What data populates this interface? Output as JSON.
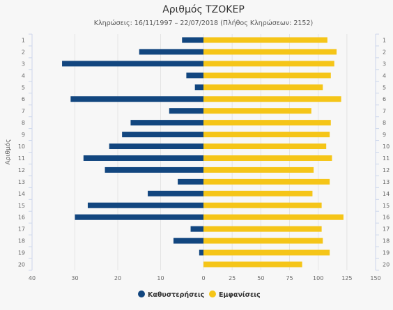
{
  "chart_data": {
    "type": "bar",
    "orientation": "horizontal",
    "title": "Αριθμός ΤΖΟΚΕΡ",
    "subtitle": "Κληρώσεις: 16/11/1997 – 22/07/2018 (Πλήθος Κληρώσεων: 2152)",
    "ylabel": "Αριθμός",
    "categories": [
      "1",
      "2",
      "3",
      "4",
      "5",
      "6",
      "7",
      "8",
      "9",
      "10",
      "11",
      "12",
      "13",
      "14",
      "15",
      "16",
      "17",
      "18",
      "19",
      "20"
    ],
    "left_axis": {
      "ticks": [
        "40",
        "30",
        "20",
        "10",
        "0"
      ],
      "range": [
        0,
        40
      ]
    },
    "right_axis": {
      "ticks": [
        "25",
        "50",
        "75",
        "100",
        "125",
        "150"
      ],
      "range": [
        0,
        150
      ]
    },
    "legend_position": "bottom-center",
    "series": [
      {
        "name": "Καθυστερήσεις",
        "color": "#12467f",
        "direction": "left",
        "values": [
          5,
          15,
          33,
          4,
          2,
          31,
          8,
          17,
          19,
          22,
          28,
          23,
          6,
          13,
          27,
          30,
          3,
          7,
          1,
          0
        ]
      },
      {
        "name": "Εμφανίσεις",
        "color": "#f5c518",
        "direction": "right",
        "values": [
          108,
          116,
          114,
          111,
          104,
          120,
          94,
          111,
          110,
          107,
          112,
          96,
          110,
          95,
          103,
          122,
          103,
          104,
          110,
          86
        ]
      }
    ],
    "grid": true
  }
}
